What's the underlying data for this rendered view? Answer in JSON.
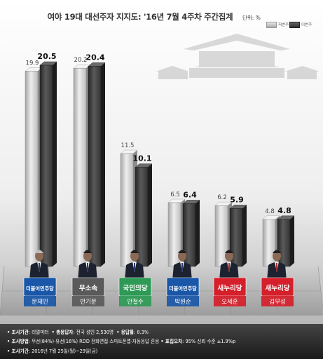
{
  "header": {
    "title": "여야 19대 대선주자 지지도: '16년 7월 4주차 주간집계",
    "unit": "단위: %"
  },
  "legend": [
    {
      "label": "저번주",
      "color": "#b8b8b8"
    },
    {
      "label": "이번주",
      "color": "#3a3a3a"
    }
  ],
  "chart_data": {
    "type": "bar",
    "title": "여야 19대 대선주자 지지도: '16년 7월 4주차 주간집계",
    "ylabel": "단위: %",
    "ylim": [
      0,
      22
    ],
    "categories": [
      "문재인",
      "반기문",
      "안철수",
      "박원순",
      "오세훈",
      "김무성"
    ],
    "parties": [
      "더불어민주당",
      "무소속",
      "국민의당",
      "더불어민주당",
      "새누리당",
      "새누리당"
    ],
    "series": [
      {
        "name": "저번주",
        "values": [
          19.9,
          20.2,
          11.5,
          6.5,
          6.2,
          4.8
        ]
      },
      {
        "name": "이번주",
        "values": [
          20.5,
          20.4,
          10.1,
          6.4,
          5.9,
          4.8
        ]
      }
    ],
    "grid": false,
    "legend_position": "top-right"
  },
  "party_colors": {
    "더불어민주당": "#1b57a8",
    "무소속": "#5a5a5a",
    "국민의당": "#2e9a55",
    "새누리당": "#d51f2a"
  },
  "footer": {
    "line1_label": "• 조사기관",
    "line1_text": ": 리얼미터",
    "line1_label2": "• 총응답자",
    "line1_text2": ": 전국 성인 2,530명",
    "line1_label3": "• 응답률",
    "line1_text3": ": 8.3%",
    "line2_label": "• 조사방법",
    "line2_text": ": 무선(84%)·유선(16%) RDD 전화면접·스마트폰앱·자동응답 혼용",
    "line2_label2": "• 표집오차",
    "line2_text2": ": 95% 신뢰 수준 ±1.9%p",
    "line3_label": "• 조사기간",
    "line3_text": ": 2016년 7월 25일(월)~29일(금)"
  }
}
